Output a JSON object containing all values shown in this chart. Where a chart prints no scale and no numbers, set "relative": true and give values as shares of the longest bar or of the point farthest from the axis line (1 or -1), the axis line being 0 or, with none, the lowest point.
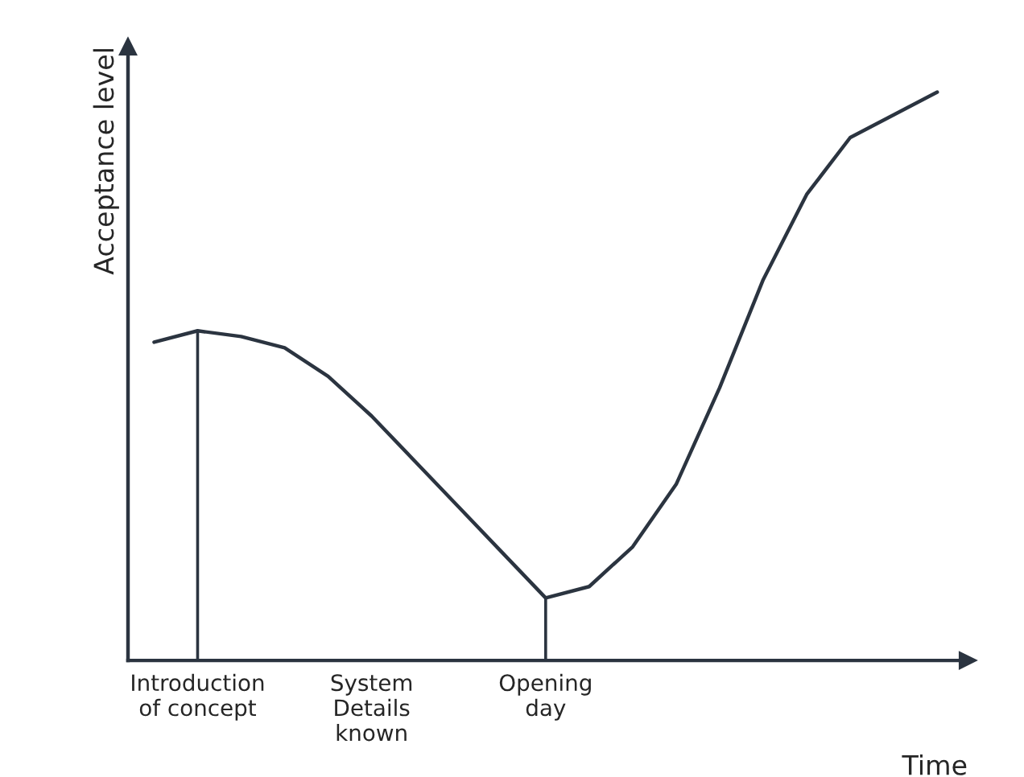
{
  "chart_data": {
    "type": "line",
    "relative": true,
    "xlabel": "Time",
    "ylabel": "Acceptance level",
    "categories": [
      null,
      "Introduction\nof concept",
      null,
      null,
      null,
      "System\nDetails\nknown",
      null,
      null,
      null,
      "Opening\nday",
      null,
      null,
      null,
      null,
      null,
      null,
      null,
      null,
      null
    ],
    "series": [
      {
        "color": "#2b3440",
        "values": [
          0.56,
          0.58,
          0.57,
          0.55,
          0.5,
          0.43,
          0.35,
          0.27,
          0.19,
          0.11,
          0.13,
          0.2,
          0.31,
          0.48,
          0.67,
          0.82,
          0.92,
          0.96,
          1.0
        ]
      }
    ],
    "ref_lines": [
      {
        "axis": "x",
        "value": "Introduction\nof concept",
        "color": "#2b3440"
      },
      {
        "axis": "x",
        "value": "Opening\nday",
        "color": "#2b3440"
      }
    ],
    "grid": false,
    "marker": "none",
    "line_style": "solid"
  }
}
